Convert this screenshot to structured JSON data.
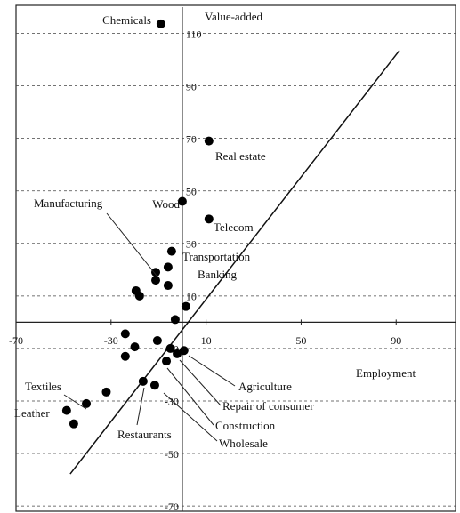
{
  "chart_data": {
    "type": "scatter",
    "x_label": "Employment",
    "y_label": "Value-added",
    "xlim": [
      -70,
      115
    ],
    "ylim": [
      -72,
      120
    ],
    "xticks": [
      -70,
      -30,
      10,
      50,
      90
    ],
    "yticks": [
      110,
      90,
      70,
      50,
      30,
      10,
      -10,
      -30,
      -50,
      -70
    ],
    "grid": true,
    "color": "#000000",
    "x": [
      -9,
      11.2,
      0,
      11.2,
      -4.5,
      -6,
      -11.2,
      -11.2,
      -6,
      -19.5,
      -18,
      1.5,
      -3,
      -24,
      -10.5,
      -20,
      -5,
      -24,
      0.7,
      -2.2,
      -6.7,
      -16.5,
      -11.6,
      -32,
      -40.4,
      -48.7,
      -45.7
    ],
    "values": [
      113.6,
      69,
      46,
      39.3,
      27,
      21,
      19,
      16,
      14,
      12,
      10,
      6,
      1,
      -4.4,
      -7,
      -9.4,
      -10,
      -13,
      -10.8,
      -12,
      -14.8,
      -22.5,
      -24,
      -26.6,
      -31,
      -33.6,
      -38.7
    ],
    "trend_line": {
      "x": [
        -47.2,
        91.4
      ],
      "values": [
        -57.8,
        103.5
      ]
    },
    "annotations": [
      "Chemicals",
      "Real estate",
      "Wood",
      "Telecom",
      "Manufacturing",
      "Transportation",
      "Banking",
      "Agriculture",
      "Repair of consumer",
      "Construction",
      "Wholesale",
      "Restaurants",
      "Textiles",
      "Leather"
    ]
  }
}
